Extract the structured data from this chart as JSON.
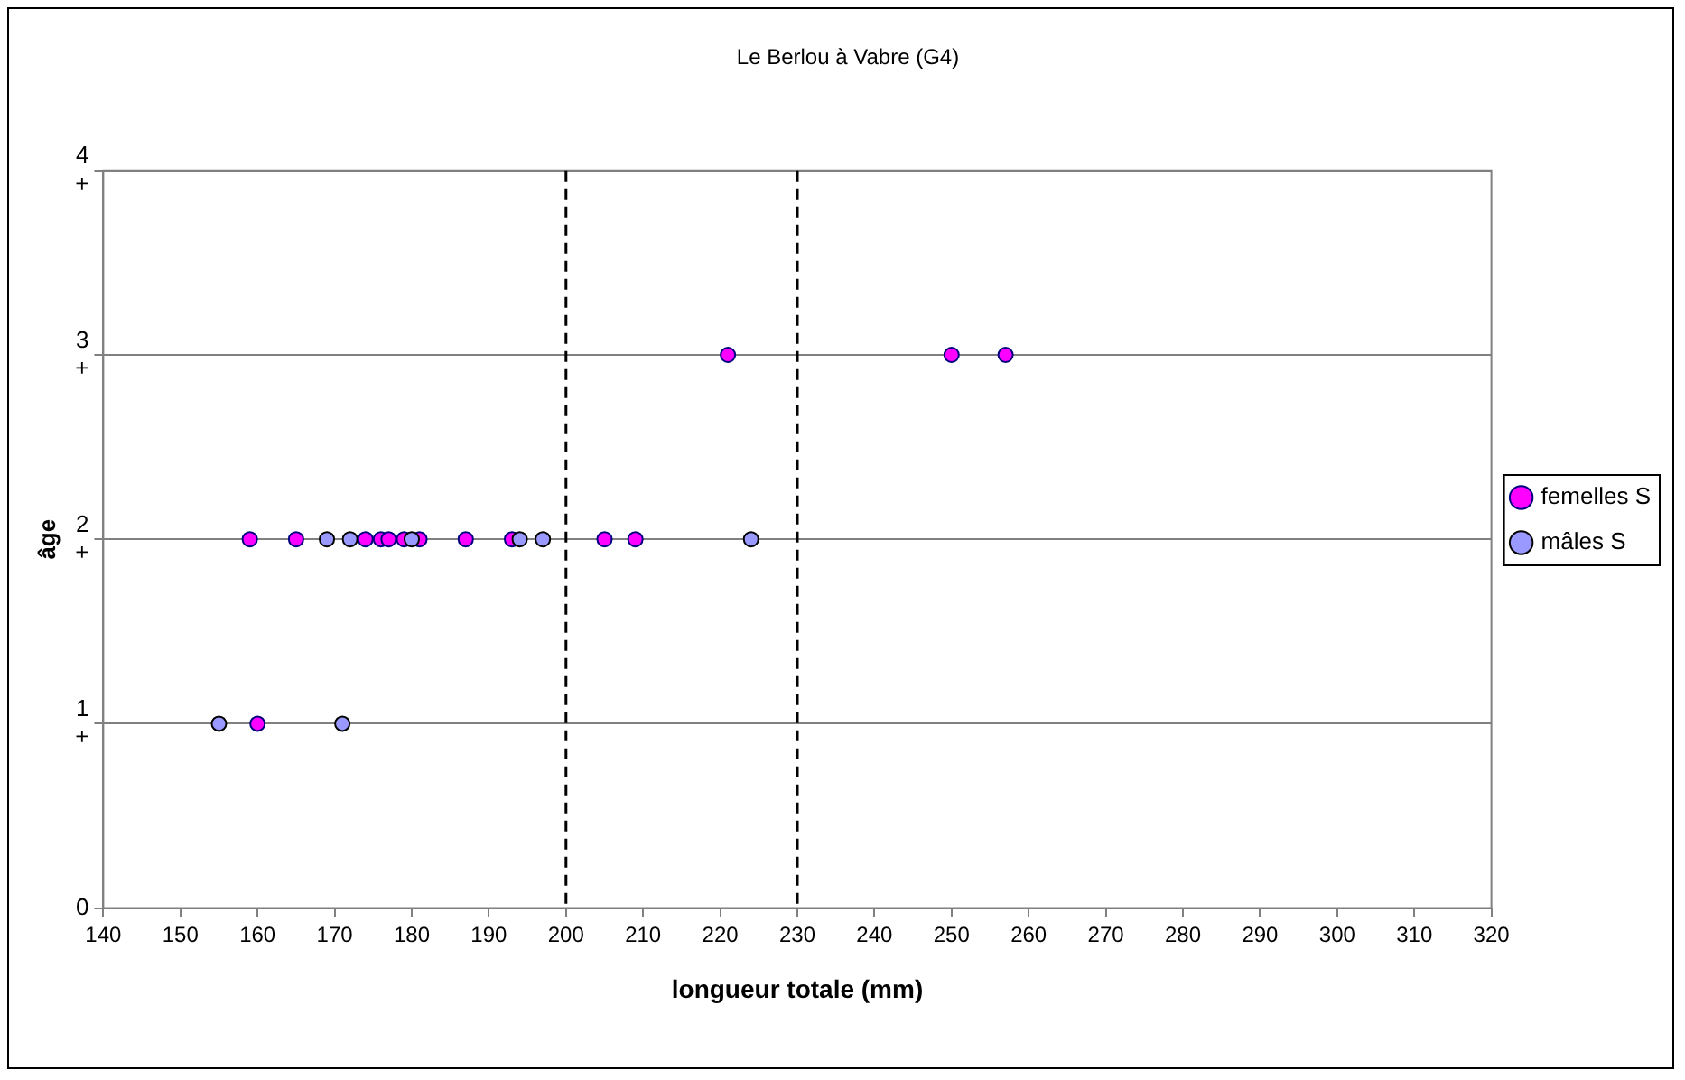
{
  "chart_data": {
    "type": "scatter",
    "title": "Le Berlou à Vabre (G4)",
    "xlabel": "longueur totale (mm)",
    "ylabel": "âge",
    "series": [
      {
        "name": "femelles S",
        "color": "#ff00ff",
        "x": [
          159,
          165,
          174,
          176,
          177,
          179,
          181,
          187,
          193,
          205,
          209,
          160,
          221,
          250,
          257
        ],
        "values": [
          2,
          2,
          2,
          2,
          2,
          2,
          2,
          2,
          2,
          2,
          2,
          1,
          3,
          3,
          3
        ]
      },
      {
        "name": "mâles S",
        "color": "#9999ff",
        "x": [
          169,
          172,
          180,
          194,
          197,
          224,
          155,
          171
        ],
        "values": [
          2,
          2,
          2,
          2,
          2,
          2,
          1,
          1
        ]
      }
    ],
    "xlim": [
      140,
      320
    ],
    "xticks": [
      140,
      150,
      160,
      170,
      180,
      190,
      200,
      210,
      220,
      230,
      240,
      250,
      260,
      270,
      280,
      290,
      300,
      310,
      320
    ],
    "ylim": [
      0,
      4
    ],
    "yticks": [
      0,
      {
        "value": 1,
        "label": "1\n+"
      },
      {
        "value": 2,
        "label": "2\n+"
      },
      {
        "value": 3,
        "label": "3\n+"
      },
      {
        "value": 4,
        "label": "4\n+"
      }
    ],
    "ref_lines": [
      {
        "axis": "x",
        "value": 200,
        "color": "#000000",
        "line_style": "dashed"
      },
      {
        "axis": "x",
        "value": 230,
        "color": "#000000",
        "line_style": "dashed"
      }
    ],
    "grid": "y",
    "legend": "right",
    "marker": "circle"
  }
}
